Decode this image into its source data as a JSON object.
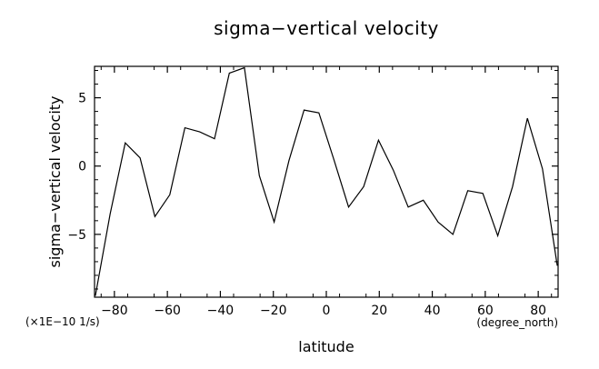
{
  "chart_data": {
    "type": "line",
    "title": "sigma−vertical velocity",
    "xlabel": "latitude",
    "ylabel": "sigma−vertical velocity",
    "x_unit": "(degree_north)",
    "y_unit": "(×1E−10 1/s)",
    "xlim": [
      -87.5,
      87.5
    ],
    "ylim": [
      -9.6,
      7.3
    ],
    "xticks": [
      -80,
      -60,
      -40,
      -20,
      0,
      20,
      40,
      60,
      80
    ],
    "xtick_labels": [
      "−80",
      "−60",
      "−40",
      "−20",
      "0",
      "20",
      "40",
      "60",
      "80"
    ],
    "yticks": [
      -5,
      0,
      5
    ],
    "ytick_labels": [
      "−5",
      "0",
      "5"
    ],
    "grid": false,
    "legend": "none",
    "series": [
      {
        "x": [
          -87.2,
          -81.6,
          -75.9,
          -70.3,
          -64.7,
          -59.1,
          -53.4,
          -47.8,
          -42.2,
          -36.6,
          -30.9,
          -25.3,
          -19.7,
          -14.1,
          -8.4,
          -2.8,
          2.8,
          8.4,
          14.1,
          19.7,
          25.3,
          30.9,
          36.6,
          42.2,
          47.8,
          53.4,
          59.1,
          64.7,
          70.3,
          75.9,
          81.6,
          87.2
        ],
        "y": [
          -9.5,
          -3.5,
          1.7,
          0.6,
          -3.7,
          -2.1,
          2.8,
          2.5,
          2.0,
          6.8,
          7.2,
          -0.7,
          -4.1,
          0.4,
          4.1,
          3.9,
          0.5,
          -3.0,
          -1.5,
          1.9,
          -0.3,
          -3.0,
          -2.5,
          -4.1,
          -5.0,
          -1.8,
          -2.0,
          -5.1,
          -1.5,
          3.5,
          -0.2,
          -7.3
        ]
      }
    ]
  }
}
